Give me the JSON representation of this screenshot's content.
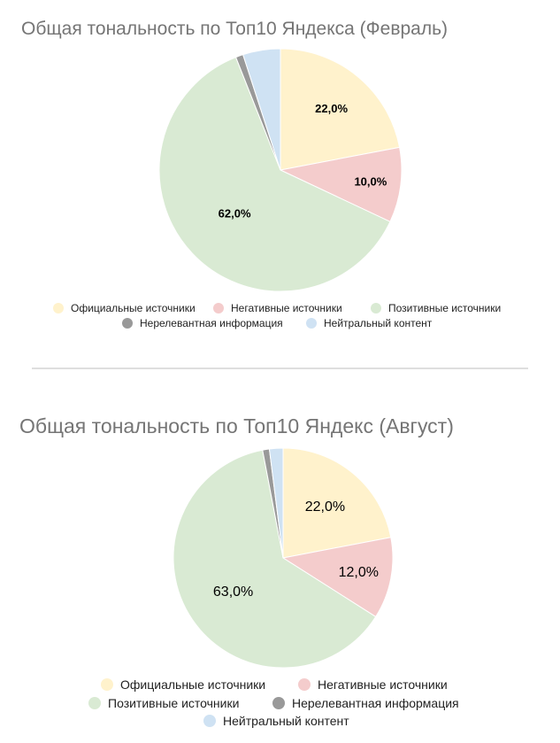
{
  "colors": {
    "official": "#fff2cc",
    "negative": "#f4cccc",
    "positive": "#d9ead3",
    "irrelevant": "#999999",
    "neutral": "#cfe2f3",
    "separator": "#bdbdbd",
    "title": "#757575"
  },
  "chart_data": [
    {
      "type": "pie",
      "title": "Общая тональность по Топ10 Яндекса (Февраль)",
      "categories": [
        "Официальные источники",
        "Негативные источники",
        "Позитивные источники",
        "Нерелевантная информация",
        "Нейтральный контент"
      ],
      "values": [
        22.0,
        10.0,
        62.0,
        1.0,
        5.0
      ],
      "data_labels": [
        "22,0%",
        "10,0%",
        "62,0%",
        "",
        ""
      ],
      "legend_position": "bottom",
      "start_angle": "12 o'clock, clockwise"
    },
    {
      "type": "pie",
      "title": "Общая тональность по Топ10 Яндекс (Август)",
      "categories": [
        "Официальные источники",
        "Негативные источники",
        "Позитивные источники",
        "Нерелевантная информация",
        "Нейтральный контент"
      ],
      "values": [
        22.0,
        12.0,
        63.0,
        1.0,
        2.0
      ],
      "data_labels": [
        "22,0%",
        "12,0%",
        "63,0%",
        "",
        ""
      ],
      "legend_position": "bottom",
      "start_angle": "12 o'clock, clockwise"
    }
  ]
}
